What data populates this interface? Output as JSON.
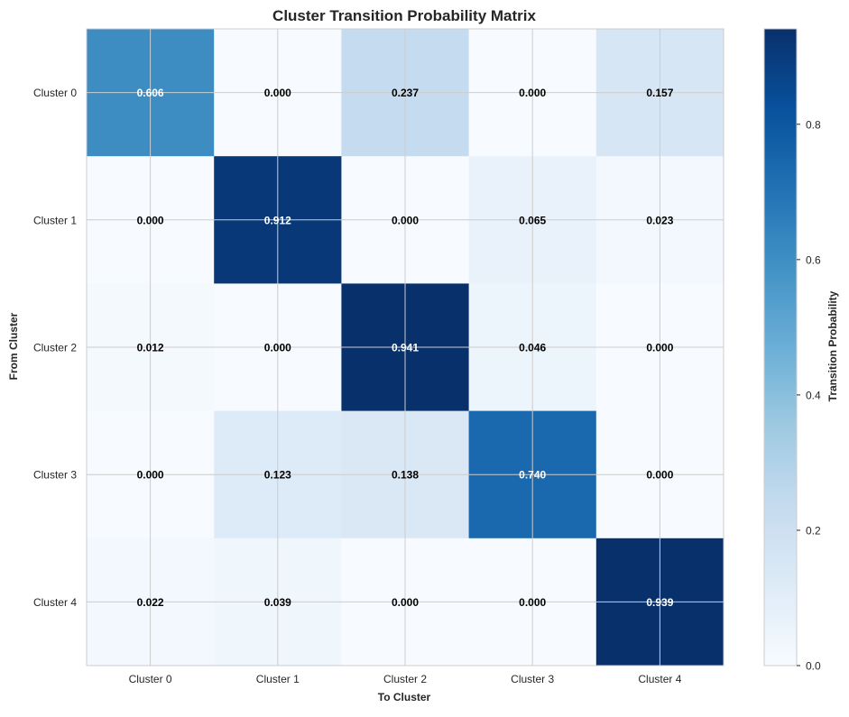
{
  "chart_data": {
    "type": "heatmap",
    "title": "Cluster Transition Probability Matrix",
    "xlabel": "To Cluster",
    "ylabel": "From Cluster",
    "x_categories": [
      "Cluster 0",
      "Cluster 1",
      "Cluster 2",
      "Cluster 3",
      "Cluster 4"
    ],
    "y_categories": [
      "Cluster 0",
      "Cluster 1",
      "Cluster 2",
      "Cluster 3",
      "Cluster 4"
    ],
    "values": [
      [
        0.606,
        0.0,
        0.237,
        0.0,
        0.157
      ],
      [
        0.0,
        0.912,
        0.0,
        0.065,
        0.023
      ],
      [
        0.012,
        0.0,
        0.941,
        0.046,
        0.0
      ],
      [
        0.0,
        0.123,
        0.138,
        0.74,
        0.0
      ],
      [
        0.022,
        0.039,
        0.0,
        0.0,
        0.939
      ]
    ],
    "value_format_decimals": 3,
    "colorbar": {
      "label": "Transition Probability",
      "range": [
        0,
        0.941
      ],
      "ticks": [
        0.0,
        0.2,
        0.4,
        0.6,
        0.8
      ],
      "tick_labels": [
        "0.0",
        "0.2",
        "0.4",
        "0.6",
        "0.8"
      ]
    },
    "colormap": "Blues",
    "grid": true
  }
}
